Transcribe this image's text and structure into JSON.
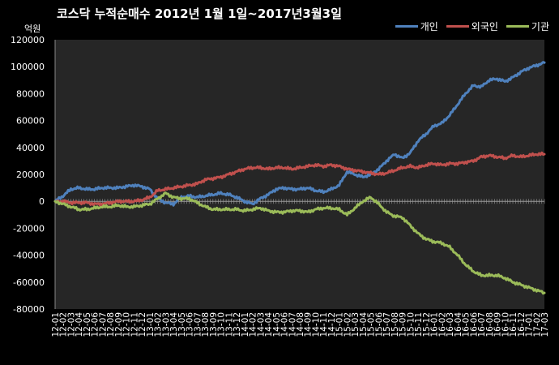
{
  "chart_data": {
    "type": "line",
    "title": "코스닥  누적순매수 2012년 1월 1일~2017년3월3일",
    "ylabel": "억원",
    "ylim": [
      -80000,
      120000
    ],
    "yticks": [
      "120000",
      "100000",
      "80000",
      "60000",
      "40000",
      "20000",
      "0",
      "-20000",
      "-40000",
      "-60000",
      "-80000"
    ],
    "grid": false,
    "legend_position": "top-right",
    "categories": [
      "12-01",
      "12-02",
      "12-03",
      "12-04",
      "12-05",
      "12-06",
      "12-07",
      "12-08",
      "12-09",
      "12-10",
      "12-11",
      "12-12",
      "13-01",
      "13-02",
      "13-03",
      "13-04",
      "13-05",
      "13-06",
      "13-07",
      "13-08",
      "13-09",
      "13-10",
      "13-11",
      "13-12",
      "14-01",
      "14-02",
      "14-03",
      "14-04",
      "14-05",
      "14-06",
      "14-07",
      "14-08",
      "14-09",
      "14-10",
      "14-11",
      "14-12",
      "15-01",
      "15-02",
      "15-03",
      "15-04",
      "15-05",
      "15-06",
      "15-07",
      "15-08",
      "15-09",
      "15-10",
      "15-11",
      "15-12",
      "16-01",
      "16-02",
      "16-03",
      "16-04",
      "16-05",
      "16-06",
      "16-07",
      "16-08",
      "16-09",
      "16-10",
      "16-11",
      "16-12",
      "17-01",
      "17-02",
      "17-03"
    ],
    "series": [
      {
        "name": "개인",
        "color": "#4f81bd",
        "values": [
          0,
          4000,
          9000,
          10000,
          9000,
          9000,
          10000,
          10000,
          10000,
          11000,
          12000,
          11000,
          9000,
          2000,
          -1000,
          -2000,
          3000,
          4000,
          3000,
          4000,
          5000,
          6000,
          5000,
          3000,
          0,
          -2000,
          2000,
          5000,
          9000,
          10000,
          9000,
          9000,
          10000,
          8000,
          7000,
          9000,
          12000,
          22000,
          20000,
          18000,
          20000,
          24000,
          30000,
          35000,
          32000,
          36000,
          45000,
          50000,
          56000,
          58000,
          64000,
          72000,
          80000,
          86000,
          85000,
          90000,
          91000,
          89000,
          92000,
          96000,
          99000,
          101000,
          103000
        ]
      },
      {
        "name": "외국인",
        "color": "#c0504d",
        "values": [
          0,
          0,
          -1000,
          -1000,
          -1000,
          -2000,
          -2000,
          -1000,
          0,
          0,
          0,
          1000,
          3000,
          8000,
          9000,
          10000,
          11000,
          12000,
          13000,
          16000,
          17000,
          18000,
          20000,
          22000,
          24000,
          25000,
          25000,
          24000,
          25000,
          25000,
          24000,
          25000,
          26000,
          27000,
          26000,
          27000,
          26000,
          24000,
          23000,
          22000,
          21000,
          20000,
          21000,
          23000,
          25000,
          26000,
          25000,
          27000,
          28000,
          27000,
          28000,
          28000,
          29000,
          30000,
          33000,
          34000,
          33000,
          32000,
          34000,
          33000,
          34000,
          35000,
          35000
        ]
      },
      {
        "name": "기관",
        "color": "#9bbb59",
        "values": [
          0,
          -2000,
          -4000,
          -6000,
          -6000,
          -5000,
          -4000,
          -4000,
          -3000,
          -4000,
          -4000,
          -3000,
          -2000,
          2000,
          6000,
          3000,
          2000,
          2000,
          -1000,
          -4000,
          -6000,
          -6000,
          -6000,
          -6000,
          -7000,
          -6000,
          -5000,
          -7000,
          -8000,
          -8000,
          -7000,
          -7000,
          -8000,
          -6000,
          -5000,
          -5000,
          -6000,
          -10000,
          -5000,
          0,
          3000,
          -2000,
          -8000,
          -11000,
          -12000,
          -18000,
          -24000,
          -28000,
          -30000,
          -31000,
          -34000,
          -40000,
          -47000,
          -52000,
          -55000,
          -55000,
          -55000,
          -57000,
          -60000,
          -62000,
          -64000,
          -66000,
          -68000
        ]
      }
    ]
  }
}
